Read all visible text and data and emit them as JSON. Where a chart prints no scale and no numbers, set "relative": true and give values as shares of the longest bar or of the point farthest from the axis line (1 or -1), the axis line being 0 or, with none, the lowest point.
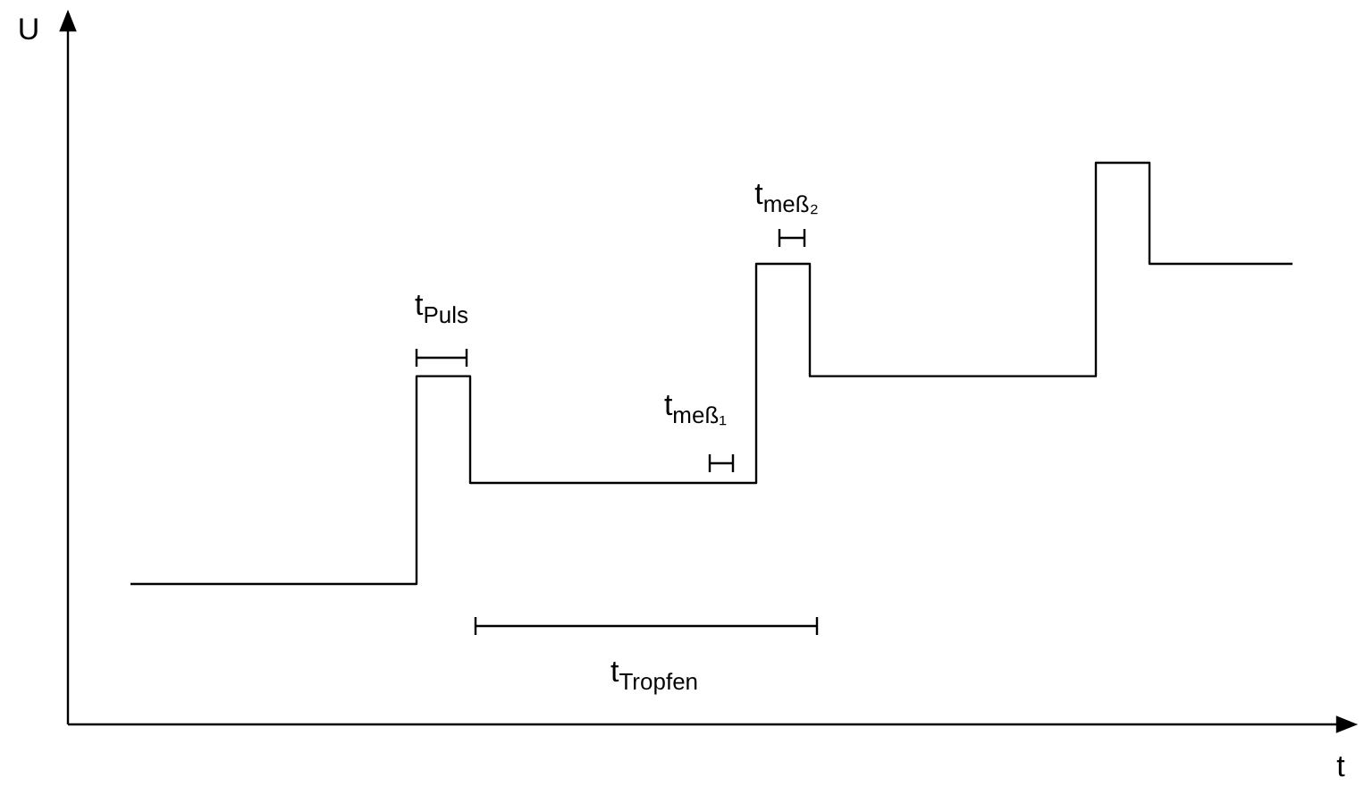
{
  "chart_data": {
    "type": "step",
    "relative": true,
    "xlabel": "t",
    "ylabel": "U",
    "color": "#000000",
    "categories": [
      null,
      null,
      null,
      null,
      null,
      null,
      null,
      null,
      null,
      null,
      null,
      null,
      null,
      null,
      null,
      null,
      null,
      null,
      null,
      null,
      null,
      null,
      null,
      null,
      null,
      null,
      null,
      null,
      null,
      null,
      null,
      null,
      null,
      null,
      null,
      null,
      null,
      null,
      null,
      null,
      null,
      null,
      null,
      null,
      null,
      null,
      null,
      null,
      null,
      null,
      null,
      null,
      null,
      null,
      null,
      null,
      null,
      null,
      null,
      null,
      null,
      null,
      null,
      null,
      null,
      null
    ],
    "values": [
      0.25,
      0.25,
      0.25,
      0.25,
      0.25,
      0.25,
      0.25,
      0.25,
      0.25,
      0.25,
      0.25,
      0.25,
      0.25,
      0.25,
      0.25,
      0.25,
      0.62,
      0.62,
      0.62,
      0.43,
      0.43,
      0.43,
      0.43,
      0.43,
      0.43,
      0.43,
      0.43,
      0.43,
      0.43,
      0.43,
      0.43,
      0.43,
      0.43,
      0.43,
      0.43,
      0.82,
      0.82,
      0.82,
      0.62,
      0.62,
      0.62,
      0.62,
      0.62,
      0.62,
      0.62,
      0.62,
      0.62,
      0.62,
      0.62,
      0.62,
      0.62,
      0.62,
      0.62,
      0.62,
      1,
      1,
      1,
      0.82,
      0.82,
      0.82,
      0.82,
      0.82,
      0.82,
      0.82,
      0.82,
      0.82
    ],
    "annotations": [
      "t$_{Puls}$",
      "t$_{meß₁}$",
      "t$_{meß₂}$",
      "t$_{Tropfen}$"
    ]
  }
}
